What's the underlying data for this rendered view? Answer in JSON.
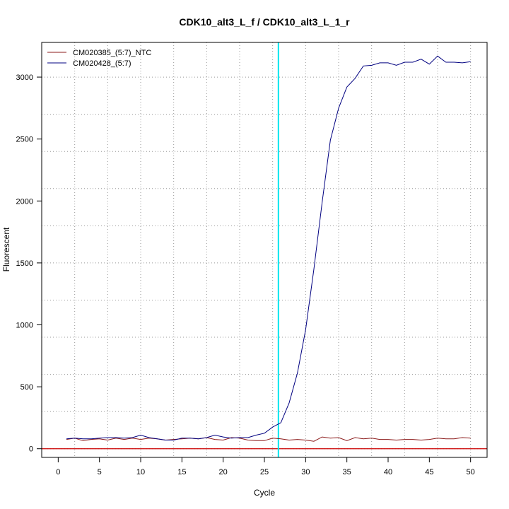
{
  "chart_data": {
    "type": "line",
    "title": "CDK10_alt3_L_f / CDK10_alt3_L_1_r",
    "xlabel": "Cycle",
    "ylabel": "Fluorescent",
    "xlim": [
      -2,
      52
    ],
    "ylim": [
      -70,
      3280
    ],
    "x_ticks": [
      0,
      5,
      10,
      15,
      20,
      25,
      30,
      35,
      40,
      45,
      50
    ],
    "y_ticks": [
      0,
      500,
      1000,
      1500,
      2000,
      2500,
      3000
    ],
    "grid": true,
    "legend_position": "top-left",
    "threshold_cycle": 26.7,
    "threshold_color": "#00e5ee",
    "baseline_value": 0,
    "baseline_color": "#cc0000",
    "series": [
      {
        "name": "CM020385_(5:7)_NTC",
        "color": "#8b1a1a",
        "x": [
          1,
          2,
          3,
          4,
          5,
          6,
          7,
          8,
          9,
          10,
          11,
          12,
          13,
          14,
          15,
          16,
          17,
          18,
          19,
          20,
          21,
          22,
          23,
          24,
          25,
          26,
          27,
          28,
          29,
          30,
          31,
          32,
          33,
          34,
          35,
          36,
          37,
          38,
          39,
          40,
          41,
          42,
          43,
          44,
          45,
          46,
          47,
          48,
          49,
          50
        ],
        "values": [
          75,
          85,
          65,
          75,
          80,
          70,
          85,
          75,
          85,
          75,
          85,
          80,
          70,
          75,
          80,
          85,
          80,
          90,
          75,
          70,
          90,
          85,
          70,
          65,
          65,
          85,
          80,
          70,
          75,
          70,
          60,
          95,
          85,
          90,
          65,
          90,
          80,
          85,
          75,
          75,
          70,
          75,
          75,
          70,
          75,
          85,
          80,
          80,
          90,
          85
        ]
      },
      {
        "name": "CM020428_(5:7)",
        "color": "#000080",
        "x": [
          1,
          2,
          3,
          4,
          5,
          6,
          7,
          8,
          9,
          10,
          11,
          12,
          13,
          14,
          15,
          16,
          17,
          18,
          19,
          20,
          21,
          22,
          23,
          24,
          25,
          26,
          27,
          28,
          29,
          30,
          31,
          32,
          33,
          34,
          35,
          36,
          37,
          38,
          39,
          40,
          41,
          42,
          43,
          44,
          45,
          46,
          47,
          48,
          49,
          50
        ],
        "values": [
          80,
          85,
          80,
          80,
          85,
          90,
          90,
          85,
          90,
          110,
          90,
          80,
          70,
          70,
          85,
          85,
          80,
          90,
          110,
          95,
          85,
          90,
          90,
          110,
          125,
          175,
          210,
          370,
          610,
          960,
          1450,
          1990,
          2490,
          2750,
          2920,
          2990,
          3090,
          3095,
          3115,
          3115,
          3095,
          3120,
          3120,
          3145,
          3105,
          3170,
          3120,
          3120,
          3115,
          3125
        ]
      }
    ]
  }
}
